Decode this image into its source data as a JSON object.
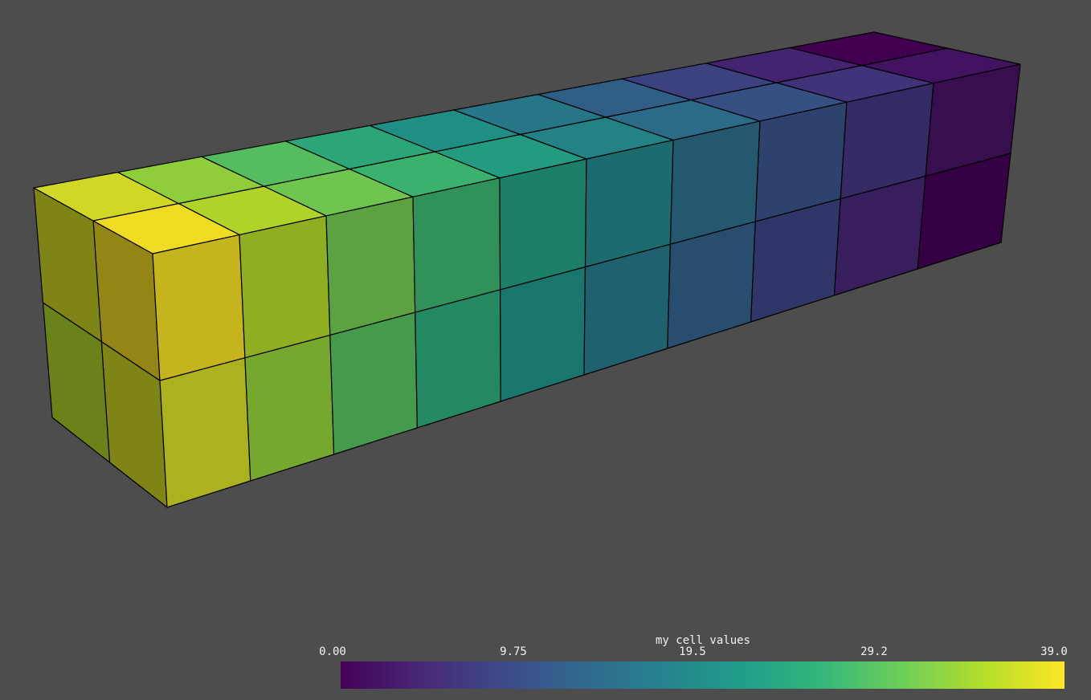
{
  "scene": {
    "background": "#4d4d4d",
    "edge_color": "#000000",
    "grid": {
      "cells_along_length": 10,
      "cells_across_width": 2,
      "cells_in_height": 2
    }
  },
  "scalar_bar": {
    "title": "my cell values",
    "tick_labels": [
      "0.00",
      "9.75",
      "19.5",
      "29.2",
      "39.0"
    ],
    "range": [
      0,
      39.0
    ],
    "colormap": "viridis",
    "colors": [
      "#440154",
      "#482878",
      "#3e4989",
      "#31688e",
      "#26828e",
      "#1f9e89",
      "#35b779",
      "#6ece58",
      "#b5de2b",
      "#fde725"
    ]
  }
}
